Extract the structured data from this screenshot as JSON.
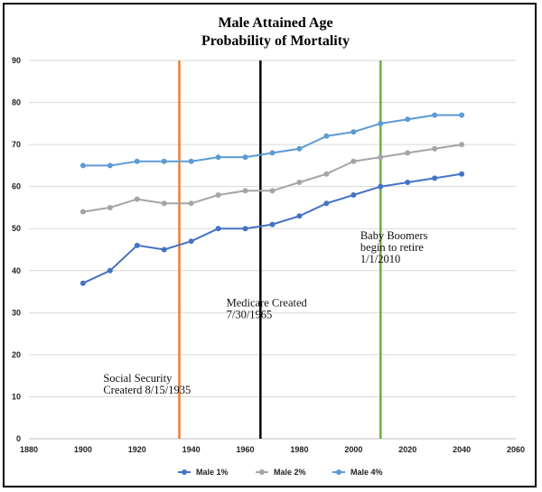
{
  "chart_data": {
    "type": "line",
    "title": [
      "Male Attained Age",
      "Probability of Mortality"
    ],
    "xlim": [
      1880,
      2060
    ],
    "ylim": [
      0,
      90
    ],
    "x_ticks": [
      1880,
      1900,
      1920,
      1940,
      1960,
      1980,
      2000,
      2020,
      2040,
      2060
    ],
    "y_ticks": [
      0,
      10,
      20,
      30,
      40,
      50,
      60,
      70,
      80,
      90
    ],
    "grid": "horizontal",
    "legend_position": "bottom",
    "x": [
      1900,
      1910,
      1920,
      1930,
      1940,
      1950,
      1960,
      1970,
      1980,
      1990,
      2000,
      2010,
      2020,
      2030,
      2040
    ],
    "series": [
      {
        "name": "Male  1%",
        "color": "#4472c4",
        "values": [
          37,
          40,
          46,
          45,
          47,
          50,
          50,
          51,
          53,
          56,
          58,
          60,
          61,
          62,
          63
        ]
      },
      {
        "name": "Male  2%",
        "color": "#a5a5a5",
        "values": [
          54,
          55,
          57,
          56,
          56,
          58,
          59,
          59,
          61,
          63,
          66,
          67,
          68,
          69,
          70
        ]
      },
      {
        "name": "Male  4%",
        "color": "#5b9bd5",
        "values": [
          65,
          65,
          66,
          66,
          66,
          67,
          67,
          68,
          69,
          72,
          73,
          75,
          76,
          77,
          77
        ]
      }
    ],
    "vertical_lines": [
      {
        "x": 1935.6,
        "color": "#ed7d31"
      },
      {
        "x": 1965.6,
        "color": "#000000"
      },
      {
        "x": 2010,
        "color": "#70ad47"
      }
    ],
    "annotations": [
      {
        "lines": [
          "Social Security",
          "Createrd 8/15/1935"
        ],
        "x": 1907.5,
        "y": 13.5
      },
      {
        "lines": [
          "Medicare Created",
          "7/30/1965"
        ],
        "x": 1953,
        "y": 31.5
      },
      {
        "lines": [
          "Baby Boomers",
          "begin to retire",
          "1/1/2010"
        ],
        "x": 2002.5,
        "y": 47.5
      }
    ]
  }
}
